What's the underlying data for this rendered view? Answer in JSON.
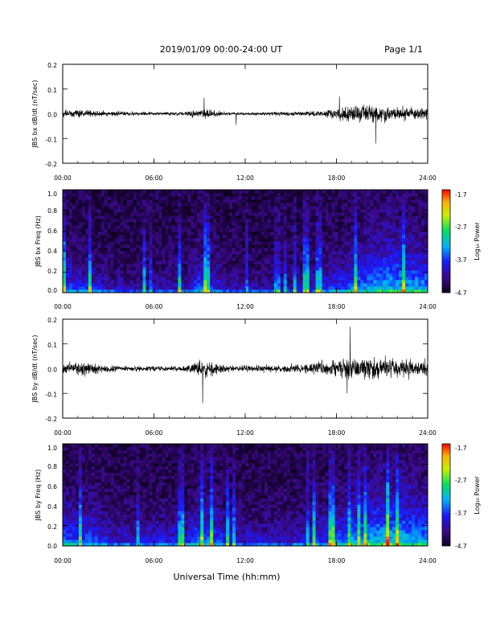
{
  "header": {
    "date_range": "2019/01/09  00:00-24:00 UT",
    "page": "Page 1/1"
  },
  "xlabel": "Universal Time (hh:mm)",
  "colorbar": {
    "label": "Log₁₀ Power",
    "ticks": [
      "-1.7",
      "-2.7",
      "-3.7",
      "-4.7"
    ]
  },
  "colors": {
    "trace": "#000000",
    "background": "#ffffff",
    "spectrogram_low": "#110022",
    "spectrogram_high": "#ff0000"
  },
  "chart_data": [
    {
      "type": "line",
      "ylabel": "JBS bx dB/dt (nT/sec)",
      "ylim": [
        -0.2,
        0.2
      ],
      "yticks": [
        "0.2",
        "0.1",
        "0.0",
        "-0.1",
        "-0.2"
      ],
      "xlim": [
        0,
        24
      ],
      "xticks": [
        "00:00",
        "06:00",
        "12:00",
        "18:00",
        "24:00"
      ],
      "x": [
        0,
        1,
        2,
        3,
        4,
        5,
        6,
        7,
        8,
        9,
        9.5,
        10,
        11,
        12,
        13,
        14,
        15,
        16,
        17,
        18,
        19,
        20,
        21,
        22,
        23,
        24
      ],
      "amplitude": [
        0.02,
        0.02,
        0.015,
        0.012,
        0.01,
        0.008,
        0.008,
        0.008,
        0.01,
        0.02,
        0.03,
        0.015,
        0.008,
        0.008,
        0.008,
        0.01,
        0.01,
        0.012,
        0.018,
        0.03,
        0.04,
        0.045,
        0.04,
        0.035,
        0.03,
        0.025
      ],
      "peaks": [
        [
          9.3,
          0.065
        ],
        [
          11.4,
          -0.045
        ],
        [
          18.2,
          0.07
        ],
        [
          20.6,
          -0.12
        ]
      ]
    },
    {
      "type": "heatmap",
      "ylabel": "JBS bx Freq (Hz)",
      "ylim": [
        0.0,
        1.0
      ],
      "yticks": [
        "1.0",
        "0.8",
        "0.6",
        "0.4",
        "0.2",
        "0.0"
      ],
      "xlim": [
        0,
        24
      ],
      "xticks": [
        "00:00",
        "06:00",
        "12:00",
        "18:00",
        "24:00"
      ],
      "zlim": [
        -4.7,
        -1.7
      ],
      "activity": [
        0.6,
        0.5,
        0.45,
        0.35,
        0.3,
        0.3,
        0.3,
        0.35,
        0.35,
        0.6,
        0.5,
        0.35,
        0.3,
        0.3,
        0.3,
        0.3,
        0.35,
        0.45,
        0.55,
        0.65,
        0.75,
        0.85,
        0.85,
        0.8,
        0.75
      ]
    },
    {
      "type": "line",
      "ylabel": "JBS by dB/dt (nT/sec)",
      "ylim": [
        -0.2,
        0.2
      ],
      "yticks": [
        "0.2",
        "0.1",
        "0.0",
        "-0.1",
        "-0.2"
      ],
      "xlim": [
        0,
        24
      ],
      "xticks": [
        "00:00",
        "06:00",
        "12:00",
        "18:00",
        "24:00"
      ],
      "x": [
        0,
        1,
        2,
        3,
        4,
        5,
        6,
        7,
        8,
        9,
        9.5,
        10,
        11,
        12,
        13,
        14,
        15,
        16,
        17,
        18,
        19,
        20,
        21,
        22,
        23,
        24
      ],
      "amplitude": [
        0.03,
        0.035,
        0.03,
        0.02,
        0.015,
        0.012,
        0.012,
        0.012,
        0.015,
        0.04,
        0.05,
        0.025,
        0.015,
        0.015,
        0.015,
        0.018,
        0.02,
        0.025,
        0.035,
        0.045,
        0.05,
        0.055,
        0.05,
        0.05,
        0.045,
        0.04
      ],
      "peaks": [
        [
          9.2,
          -0.14
        ],
        [
          18.9,
          0.17
        ],
        [
          18.7,
          -0.1
        ]
      ]
    },
    {
      "type": "heatmap",
      "ylabel": "JBS by Freq (Hz)",
      "ylim": [
        0.0,
        1.0
      ],
      "yticks": [
        "1.0",
        "0.8",
        "0.6",
        "0.4",
        "0.2",
        "0.0"
      ],
      "xlim": [
        0,
        24
      ],
      "xticks": [
        "00:00",
        "06:00",
        "12:00",
        "18:00",
        "24:00"
      ],
      "zlim": [
        -4.7,
        -1.7
      ],
      "activity": [
        0.7,
        0.6,
        0.6,
        0.45,
        0.4,
        0.4,
        0.45,
        0.45,
        0.45,
        0.7,
        0.6,
        0.45,
        0.4,
        0.4,
        0.4,
        0.4,
        0.45,
        0.55,
        0.6,
        0.75,
        0.85,
        0.9,
        0.9,
        0.85,
        0.8
      ]
    }
  ]
}
